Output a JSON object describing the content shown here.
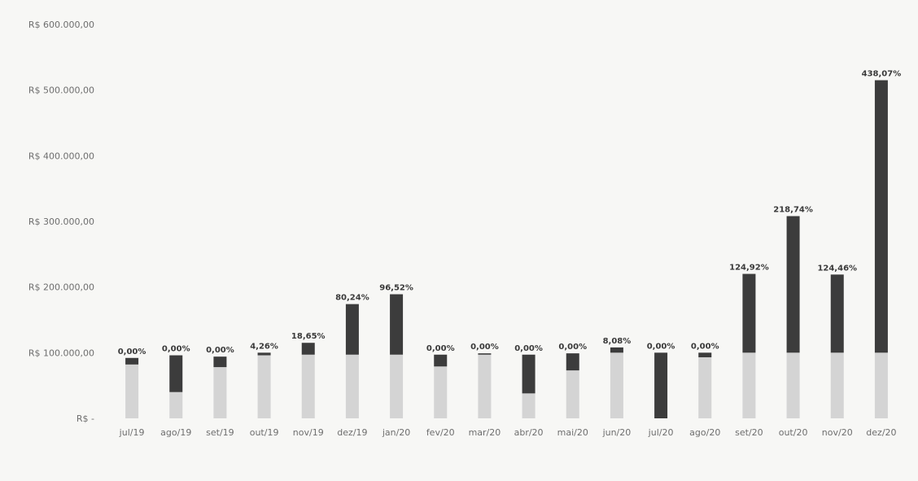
{
  "chart_data": {
    "type": "bar",
    "stacked": true,
    "title": "",
    "xlabel": "",
    "ylabel": "",
    "ylim": [
      0,
      600000
    ],
    "y_ticks": [
      0,
      100000,
      200000,
      300000,
      400000,
      500000,
      600000
    ],
    "y_tick_labels": [
      "R$ -",
      "R$ 100.000,00",
      "R$ 200.000,00",
      "R$ 300.000,00",
      "R$ 400.000,00",
      "R$ 500.000,00",
      "R$ 600.000,00"
    ],
    "grid": false,
    "legend": "none",
    "categories": [
      "jul/19",
      "ago/19",
      "set/19",
      "out/19",
      "nov/19",
      "dez/19",
      "jan/20",
      "fev/20",
      "mar/20",
      "abr/20",
      "mai/20",
      "jun/20",
      "jul/20",
      "ago/20",
      "set/20",
      "out/20",
      "nov/20",
      "dez/20"
    ],
    "series": [
      {
        "color": "#d4d4d4",
        "values": [
          82000,
          40000,
          78000,
          96000,
          97000,
          97000,
          97000,
          79000,
          97000,
          38000,
          73000,
          100000,
          0,
          93000,
          100000,
          100000,
          100000,
          100000
        ]
      },
      {
        "color": "#3c3c3c",
        "values": [
          10000,
          56000,
          16000,
          4000,
          18000,
          77000,
          92000,
          18000,
          2000,
          59000,
          26000,
          8000,
          100000,
          7000,
          120000,
          208000,
          119000,
          415000
        ]
      }
    ],
    "data_labels": [
      "0,00%",
      "0,00%",
      "0,00%",
      "4,26%",
      "18,65%",
      "80,24%",
      "96,52%",
      "0,00%",
      "0,00%",
      "0,00%",
      "0,00%",
      "8,08%",
      "0,00%",
      "0,00%",
      "124,92%",
      "218,74%",
      "124,46%",
      "438,07%"
    ]
  }
}
